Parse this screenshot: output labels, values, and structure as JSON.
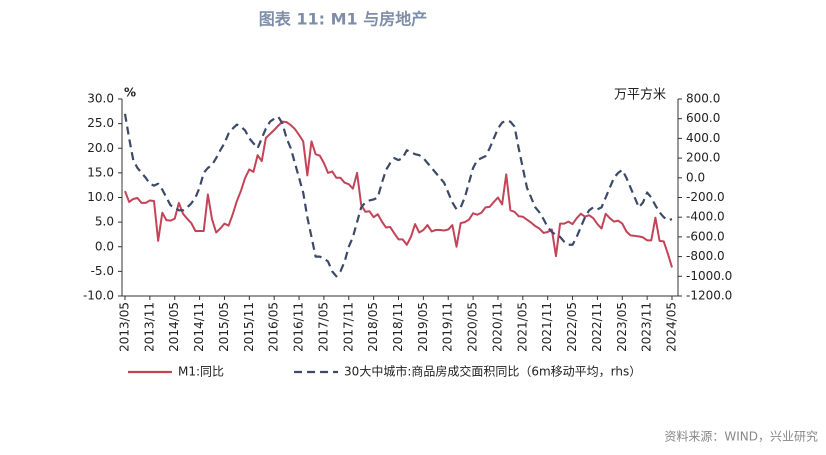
{
  "chart_data": {
    "type": "line",
    "title": "图表 11: M1 与房地产",
    "y_label": "%",
    "y2_label": "万平方米",
    "source": "资料来源：WIND，兴业研究",
    "categories": [
      "2013/05",
      null,
      null,
      null,
      null,
      null,
      "2013/11",
      null,
      null,
      null,
      null,
      null,
      "2014/05",
      null,
      null,
      null,
      null,
      null,
      "2014/11",
      null,
      null,
      null,
      null,
      null,
      "2015/05",
      null,
      null,
      null,
      null,
      null,
      "2015/11",
      null,
      null,
      null,
      null,
      null,
      "2016/05",
      null,
      null,
      null,
      null,
      null,
      "2016/11",
      null,
      null,
      null,
      null,
      null,
      "2017/05",
      null,
      null,
      null,
      null,
      null,
      "2017/11",
      null,
      null,
      null,
      null,
      null,
      "2018/05",
      null,
      null,
      null,
      null,
      null,
      "2018/11",
      null,
      null,
      null,
      null,
      null,
      "2019/05",
      null,
      null,
      null,
      null,
      null,
      "2019/11",
      null,
      null,
      null,
      null,
      null,
      "2020/05",
      null,
      null,
      null,
      null,
      null,
      "2020/11",
      null,
      null,
      null,
      null,
      null,
      "2021/05",
      null,
      null,
      null,
      null,
      null,
      "2021/11",
      null,
      null,
      null,
      null,
      null,
      "2022/05",
      null,
      null,
      null,
      null,
      null,
      "2022/11",
      null,
      null,
      null,
      null,
      null,
      "2023/05",
      null,
      null,
      null,
      null,
      null,
      "2023/11",
      null,
      null,
      null,
      null,
      null,
      "2024/05"
    ],
    "series": [
      {
        "name": "M1:同比",
        "color": "#c44457",
        "style": "solid",
        "values": [
          11.3,
          9.1,
          9.7,
          9.9,
          8.9,
          8.9,
          9.4,
          9.3,
          1.2,
          6.9,
          5.4,
          5.3,
          5.7,
          8.9,
          6.7,
          5.7,
          4.8,
          3.2,
          3.2,
          3.2,
          10.6,
          5.6,
          2.9,
          3.7,
          4.7,
          4.3,
          6.6,
          9.3,
          11.4,
          14.0,
          15.7,
          15.2,
          18.6,
          17.4,
          22.1,
          22.9,
          23.7,
          24.6,
          25.4,
          25.3,
          24.7,
          23.9,
          22.7,
          21.4,
          14.5,
          21.4,
          18.8,
          18.5,
          17.0,
          15.0,
          15.3,
          14.0,
          14.0,
          13.0,
          12.7,
          11.8,
          15.0,
          8.5,
          7.1,
          7.2,
          6.0,
          6.6,
          5.1,
          3.9,
          4.0,
          2.7,
          1.5,
          1.5,
          0.4,
          2.0,
          4.6,
          2.9,
          3.4,
          4.4,
          3.1,
          3.4,
          3.4,
          3.3,
          3.5,
          4.4,
          0.0,
          4.8,
          5.0,
          5.5,
          6.8,
          6.5,
          6.9,
          8.0,
          8.1,
          9.1,
          10.0,
          8.6,
          14.7,
          7.4,
          7.1,
          6.2,
          6.1,
          5.5,
          4.9,
          4.2,
          3.7,
          2.8,
          3.0,
          3.5,
          -1.9,
          4.7,
          4.7,
          5.1,
          4.6,
          5.8,
          6.7,
          6.1,
          6.4,
          5.8,
          4.6,
          3.7,
          6.7,
          5.8,
          5.1,
          5.3,
          4.7,
          3.1,
          2.3,
          2.2,
          2.1,
          1.9,
          1.3,
          1.3,
          5.9,
          1.2,
          1.1,
          -1.4,
          -4.2
        ]
      },
      {
        "name": "30大中城市:商品房成交面积同比（6m移动平均，rhs）",
        "color": "#3b4a68",
        "style": "dashed",
        "axis": "y2",
        "values": [
          650,
          400,
          180,
          100,
          50,
          0,
          -60,
          -80,
          -60,
          -120,
          -200,
          -280,
          -300,
          -330,
          -330,
          -300,
          -260,
          -200,
          -100,
          50,
          100,
          130,
          200,
          280,
          350,
          450,
          500,
          540,
          520,
          480,
          400,
          350,
          300,
          400,
          500,
          570,
          600,
          620,
          550,
          400,
          300,
          150,
          0,
          -150,
          -400,
          -600,
          -800,
          -800,
          -820,
          -850,
          -950,
          -1000,
          -950,
          -850,
          -700,
          -600,
          -450,
          -300,
          -250,
          -230,
          -220,
          -200,
          -50,
          80,
          150,
          200,
          180,
          200,
          280,
          260,
          240,
          230,
          200,
          150,
          100,
          50,
          0,
          -50,
          -150,
          -250,
          -320,
          -300,
          -200,
          -50,
          100,
          180,
          200,
          220,
          300,
          400,
          500,
          560,
          580,
          570,
          520,
          300,
          100,
          -100,
          -200,
          -300,
          -350,
          -420,
          -500,
          -550,
          -580,
          -600,
          -650,
          -680,
          -680,
          -600,
          -500,
          -400,
          -330,
          -300,
          -320,
          -300,
          -200,
          -100,
          0,
          50,
          80,
          0,
          -100,
          -200,
          -300,
          -250,
          -150,
          -200,
          -280,
          -350,
          -400,
          -430,
          -420
        ]
      }
    ],
    "ylim": [
      -10,
      30
    ],
    "yticks": [
      {
        "value": -10,
        "label": "-10.0"
      },
      {
        "value": -5,
        "label": "-5.0"
      },
      {
        "value": 0,
        "label": "0.0"
      },
      {
        "value": 5,
        "label": "5.0"
      },
      {
        "value": 10,
        "label": "10.0"
      },
      {
        "value": 15,
        "label": "15.0"
      },
      {
        "value": 20,
        "label": "20.0"
      },
      {
        "value": 25,
        "label": "25.0"
      },
      {
        "value": 30,
        "label": "30.0"
      }
    ],
    "y2lim": [
      -1200,
      800
    ],
    "y2ticks": [
      {
        "value": -1200,
        "label": "-1200.0"
      },
      {
        "value": -1000,
        "label": "-1000.0"
      },
      {
        "value": -800,
        "label": "-800.0"
      },
      {
        "value": -600,
        "label": "-600.0"
      },
      {
        "value": -400,
        "label": "-400.0"
      },
      {
        "value": -200,
        "label": "-200.0"
      },
      {
        "value": 0,
        "label": "0.0"
      },
      {
        "value": 200,
        "label": "200.0"
      },
      {
        "value": 400,
        "label": "400.0"
      },
      {
        "value": 600,
        "label": "600.0"
      },
      {
        "value": 800,
        "label": "800.0"
      }
    ],
    "grid": false,
    "legend": "bottom"
  }
}
